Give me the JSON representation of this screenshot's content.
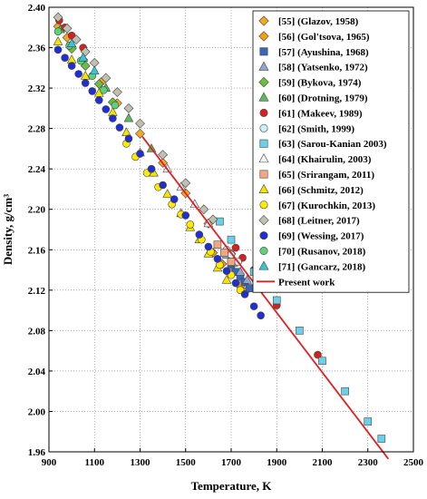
{
  "chart_data": {
    "type": "scatter",
    "xlabel": "Temperature,  K",
    "ylabel": "Density,  g/cm³",
    "xlim": [
      900,
      2500
    ],
    "ylim": [
      1.96,
      2.4
    ],
    "xticks": [
      900,
      1100,
      1300,
      1500,
      1700,
      1900,
      2100,
      2300,
      2500
    ],
    "yticks": [
      1.96,
      2.0,
      2.04,
      2.08,
      2.12,
      2.16,
      2.2,
      2.24,
      2.28,
      2.32,
      2.36,
      2.4
    ],
    "x_tick_labels": [
      "900",
      "1100",
      "1300",
      "1500",
      "1700",
      "1900",
      "2100",
      "2300",
      "2500"
    ],
    "y_tick_labels": [
      "1.96",
      "2.00",
      "2.04",
      "2.08",
      "2.12",
      "2.16",
      "2.20",
      "2.24",
      "2.28",
      "2.32",
      "2.36",
      "2.40"
    ],
    "legend_position": "top-right",
    "series": [
      {
        "name": "[55] (Glazov, 1958)",
        "marker": "diamond",
        "color": "#f5a623",
        "x": [
          940,
          980,
          1050,
          1130,
          1200,
          1300,
          1400,
          1500,
          1600,
          1700
        ],
        "y": [
          2.381,
          2.37,
          2.348,
          2.326,
          2.305,
          2.275,
          2.246,
          2.216,
          2.186,
          2.156
        ]
      },
      {
        "name": "[56] (Gol'tsova, 1965)",
        "marker": "diamond",
        "color": "#f0a010",
        "x": [
          1620,
          1660,
          1700,
          1740,
          1760
        ],
        "y": [
          2.157,
          2.146,
          2.136,
          2.124,
          2.118
        ]
      },
      {
        "name": "[57] (Ayushina, 1968)",
        "marker": "square",
        "color": "#3a66b8",
        "x": [
          1700,
          1720,
          1740,
          1760,
          1780
        ],
        "y": [
          2.145,
          2.138,
          2.133,
          2.128,
          2.122
        ]
      },
      {
        "name": "[58] (Yatsenko, 1972)",
        "marker": "triangle",
        "color": "#8fa5d0",
        "x": [
          1680,
          1710,
          1740,
          1770
        ],
        "y": [
          2.155,
          2.147,
          2.138,
          2.13
        ]
      },
      {
        "name": "[59] (Bykova, 1974)",
        "marker": "diamond",
        "color": "#6cbf3c",
        "x": [
          1000,
          1060,
          1120,
          1180
        ],
        "y": [
          2.359,
          2.342,
          2.324,
          2.306
        ]
      },
      {
        "name": "[60] (Drotning, 1979)",
        "marker": "triangle",
        "color": "#5cb85c",
        "x": [
          950,
          1050,
          1150,
          1250,
          1350
        ],
        "y": [
          2.378,
          2.35,
          2.32,
          2.29,
          2.26
        ]
      },
      {
        "name": "[61] (Makeev, 1989)",
        "marker": "circle",
        "color": "#d62020",
        "x": [
          945,
          970,
          1000,
          1050,
          1720,
          1750,
          1800,
          1900,
          2080
        ],
        "y": [
          2.387,
          2.38,
          2.372,
          2.36,
          2.162,
          2.152,
          2.14,
          2.105,
          2.056
        ]
      },
      {
        "name": "[62] (Smith, 1999)",
        "marker": "circle",
        "color": "#c8f0f5",
        "x": [
          1680,
          1700,
          1730
        ],
        "y": [
          2.16,
          2.155,
          2.148
        ]
      },
      {
        "name": "[63] (Sarou-Kanian 2003)",
        "marker": "square",
        "color": "#6ad0e8",
        "x": [
          1650,
          1700,
          1800,
          1900,
          2000,
          2100,
          2200,
          2300,
          2360
        ],
        "y": [
          2.188,
          2.17,
          2.138,
          2.11,
          2.08,
          2.05,
          2.02,
          1.99,
          1.973
        ]
      },
      {
        "name": "[64] (Khairulin, 2003)",
        "marker": "triangle",
        "color": "#f2f2f2",
        "x": [
          1420,
          1480,
          1540,
          1600
        ],
        "y": [
          2.24,
          2.222,
          2.205,
          2.186
        ]
      },
      {
        "name": "[65] (Srirangam, 2011)",
        "marker": "square",
        "color": "#f4a582",
        "x": [
          1640,
          1670,
          1700
        ],
        "y": [
          2.165,
          2.157,
          2.148
        ]
      },
      {
        "name": "[66] (Schmitz, 2012)",
        "marker": "triangle",
        "color": "#f5e300",
        "x": [
          940,
          1000,
          1060,
          1120,
          1180,
          1240,
          1300,
          1360,
          1420,
          1480,
          1520,
          1560,
          1600,
          1640,
          1680
        ],
        "y": [
          2.366,
          2.348,
          2.332,
          2.315,
          2.296,
          2.276,
          2.256,
          2.236,
          2.215,
          2.196,
          2.182,
          2.17,
          2.156,
          2.142,
          2.13
        ]
      },
      {
        "name": "[67] (Kurochkin, 2013)",
        "marker": "circle",
        "color": "#ffea00",
        "x": [
          1240,
          1280,
          1330,
          1380,
          1440,
          1480,
          1520,
          1570,
          1610,
          1650,
          1700,
          1740
        ],
        "y": [
          2.265,
          2.252,
          2.236,
          2.222,
          2.205,
          2.195,
          2.185,
          2.17,
          2.158,
          2.145,
          2.135,
          2.12
        ]
      },
      {
        "name": "[68] (Leitner, 2017)",
        "marker": "diamond",
        "color": "#c0c0b0",
        "x": [
          940,
          980,
          1020,
          1060,
          1100,
          1150,
          1200,
          1250,
          1300,
          1400,
          1500,
          1580,
          1620
        ],
        "y": [
          2.39,
          2.379,
          2.368,
          2.356,
          2.345,
          2.33,
          2.316,
          2.3,
          2.285,
          2.254,
          2.226,
          2.2,
          2.19
        ]
      },
      {
        "name": "[69] (Wessing, 2017)",
        "marker": "circle",
        "color": "#1f2fd0",
        "x": [
          940,
          970,
          1000,
          1030,
          1060,
          1090,
          1120,
          1150,
          1180,
          1210,
          1250,
          1300,
          1350,
          1400,
          1450,
          1500,
          1560,
          1600,
          1640,
          1680,
          1720,
          1760,
          1800,
          1830
        ],
        "y": [
          2.358,
          2.35,
          2.342,
          2.334,
          2.325,
          2.317,
          2.308,
          2.299,
          2.29,
          2.281,
          2.27,
          2.255,
          2.24,
          2.224,
          2.21,
          2.194,
          2.175,
          2.163,
          2.151,
          2.139,
          2.127,
          2.116,
          2.104,
          2.095
        ]
      },
      {
        "name": "[70] (Rusanov, 2018)",
        "marker": "circle",
        "color": "#5ed07a",
        "x": [
          940,
          990,
          1040,
          1090,
          1140,
          1190
        ],
        "y": [
          2.376,
          2.362,
          2.347,
          2.332,
          2.318,
          2.303
        ]
      },
      {
        "name": "[71] (Gancarz, 2018)",
        "marker": "triangle",
        "color": "#33c6d8",
        "x": [
          1000,
          1050,
          1100
        ],
        "y": [
          2.364,
          2.35,
          2.337
        ]
      },
      {
        "name": "Present work",
        "marker": "line",
        "color": "#e02020",
        "x": [
          1310,
          2390
        ],
        "y": [
          2.272,
          1.953
        ]
      }
    ]
  }
}
